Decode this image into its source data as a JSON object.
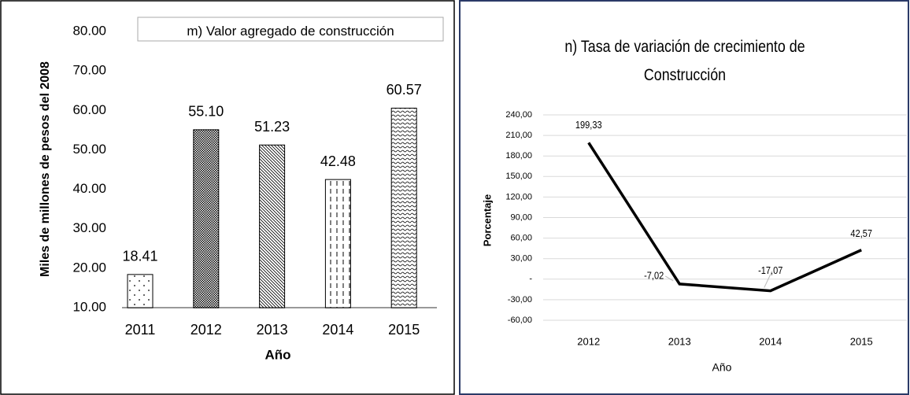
{
  "chart_data": [
    {
      "type": "bar",
      "title": "m) Valor agregado de construcción",
      "categories": [
        "2011",
        "2012",
        "2013",
        "2014",
        "2015"
      ],
      "values": [
        18.41,
        55.1,
        51.23,
        42.48,
        60.57
      ],
      "value_labels": [
        "18.41",
        "55.10",
        "51.23",
        "42.48",
        "60.57"
      ],
      "color": "#000000",
      "ylim": [
        10,
        80
      ],
      "yticks": [
        {
          "value": 10,
          "label": "10.00"
        },
        {
          "value": 20,
          "label": "20.00"
        },
        {
          "value": 30,
          "label": "30.00"
        },
        {
          "value": 40,
          "label": "40.00"
        },
        {
          "value": 50,
          "label": "50.00"
        },
        {
          "value": 60,
          "label": "60.00"
        },
        {
          "value": 70,
          "label": "70.00"
        },
        {
          "value": 80,
          "label": "80.00"
        }
      ],
      "xlabel": "Año",
      "ylabel": "Miles de millones de pesos del 2008",
      "grid": false
    },
    {
      "type": "line",
      "title": "n) Tasa de variación de crecimiento de Construcción",
      "categories": [
        "2012",
        "2013",
        "2014",
        "2015"
      ],
      "values": [
        199.33,
        -7.02,
        -17.07,
        42.57
      ],
      "value_labels": [
        "199,33",
        "-7,02",
        "-17,07",
        "42,57"
      ],
      "color": "#000000",
      "ylim": [
        -60,
        240
      ],
      "yticks": [
        {
          "value": -60,
          "label": "-60,00"
        },
        {
          "value": -30,
          "label": "-30,00"
        },
        {
          "value": 0,
          "label": "-"
        },
        {
          "value": 30,
          "label": "30,00"
        },
        {
          "value": 60,
          "label": "60,00"
        },
        {
          "value": 90,
          "label": "90,00"
        },
        {
          "value": 120,
          "label": "120,00"
        },
        {
          "value": 150,
          "label": "150,00"
        },
        {
          "value": 180,
          "label": "180,00"
        },
        {
          "value": 210,
          "label": "210,00"
        },
        {
          "value": 240,
          "label": "240,00"
        }
      ],
      "xlabel": "Año",
      "ylabel": "Porcentaje",
      "grid": true
    }
  ]
}
